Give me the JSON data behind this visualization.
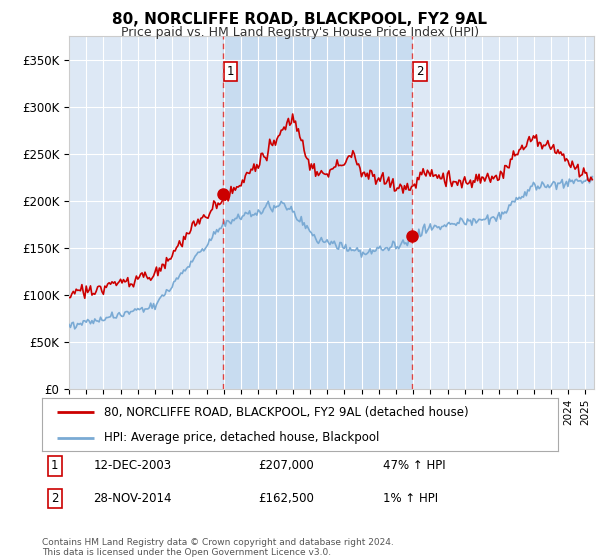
{
  "title": "80, NORCLIFFE ROAD, BLACKPOOL, FY2 9AL",
  "subtitle": "Price paid vs. HM Land Registry's House Price Index (HPI)",
  "ylabel_ticks": [
    "£0",
    "£50K",
    "£100K",
    "£150K",
    "£200K",
    "£250K",
    "£300K",
    "£350K"
  ],
  "ytick_values": [
    0,
    50000,
    100000,
    150000,
    200000,
    250000,
    300000,
    350000
  ],
  "ylim": [
    0,
    375000
  ],
  "xlim_start": 1995.0,
  "xlim_end": 2025.5,
  "sale1_x": 2003.92,
  "sale1_y": 207000,
  "sale2_x": 2014.92,
  "sale2_y": 162500,
  "legend_line1": "80, NORCLIFFE ROAD, BLACKPOOL, FY2 9AL (detached house)",
  "legend_line2": "HPI: Average price, detached house, Blackpool",
  "footer": "Contains HM Land Registry data © Crown copyright and database right 2024.\nThis data is licensed under the Open Government Licence v3.0.",
  "hpi_color": "#7aaad4",
  "price_color": "#cc0000",
  "vline_color": "#dd4444",
  "background_chart": "#dde8f5",
  "highlight_color": "#c8dcf0",
  "background_fig": "#ffffff",
  "grid_color": "#ffffff"
}
